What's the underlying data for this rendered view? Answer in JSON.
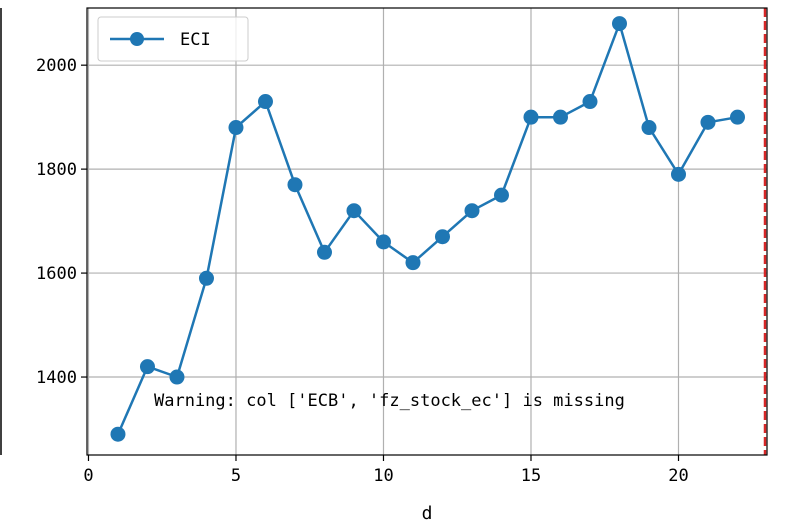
{
  "chart_data": {
    "type": "line",
    "title": "",
    "xlabel": "d",
    "ylabel": "",
    "xlim": [
      -0.05,
      23
    ],
    "ylim": [
      1250,
      2110
    ],
    "grid": true,
    "legend": {
      "position": "top-left",
      "entries": [
        "ECI"
      ]
    },
    "x_ticks": [
      0,
      5,
      10,
      15,
      20
    ],
    "y_ticks": [
      1400,
      1600,
      1800,
      2000
    ],
    "x_tick_labels": [
      "0",
      "5",
      "10",
      "15",
      "20"
    ],
    "y_tick_labels": [
      "1400",
      "1600",
      "1800",
      "2000"
    ],
    "series": [
      {
        "name": "ECI",
        "color": "#1f77b4",
        "marker": "circle",
        "x": [
          1,
          2,
          3,
          4,
          5,
          6,
          7,
          8,
          9,
          10,
          11,
          12,
          13,
          14,
          15,
          16,
          17,
          18,
          19,
          20,
          21,
          22
        ],
        "y": [
          1290,
          1420,
          1400,
          1590,
          1880,
          1930,
          1770,
          1640,
          1720,
          1660,
          1620,
          1670,
          1720,
          1750,
          1900,
          1900,
          1930,
          2080,
          1880,
          1790,
          1890,
          1900
        ]
      }
    ],
    "vline": {
      "x": 23,
      "color": "#d62728",
      "style": "dashed"
    },
    "annotation": "Warning: col ['ECB', 'fz_stock_ec'] is missing"
  }
}
